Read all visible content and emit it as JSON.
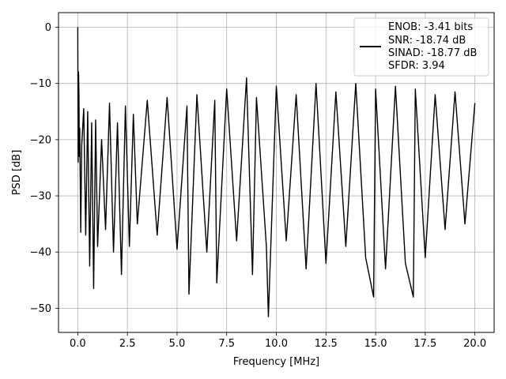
{
  "chart_data": {
    "type": "line",
    "xlabel": "Frequency [MHz]",
    "ylabel": "PSD [dB]",
    "xlim": [
      -0.97,
      20.97
    ],
    "ylim": [
      -54.3,
      2.6
    ],
    "xticks": [
      0.0,
      2.5,
      5.0,
      7.5,
      10.0,
      12.5,
      15.0,
      17.5,
      20.0
    ],
    "xtick_labels": [
      "0.0",
      "2.5",
      "5.0",
      "7.5",
      "10.0",
      "12.5",
      "15.0",
      "17.5",
      "20.0"
    ],
    "yticks": [
      0,
      -10,
      -20,
      -30,
      -40,
      -50
    ],
    "ytick_labels": [
      "0",
      "−10",
      "−20",
      "−30",
      "−40",
      "−50"
    ],
    "grid": true,
    "legend_position": "top-right",
    "legend_lines": [
      "ENOB: -3.41 bits",
      "SNR: -18.74 dB",
      "SINAD: -18.77 dB",
      "SFDR: 3.94"
    ],
    "series_color": "#000000",
    "series": [
      {
        "x": [
          0.0,
          0.02,
          0.04,
          0.06,
          0.08,
          0.1,
          0.15,
          0.2,
          0.3,
          0.4,
          0.5,
          0.6,
          0.7,
          0.8,
          0.9,
          1.0,
          1.2,
          1.4,
          1.6,
          1.8,
          2.0,
          2.2,
          2.4,
          2.6,
          2.8,
          3.0,
          3.5,
          4.0,
          4.5,
          5.0,
          5.5,
          5.6,
          6.0,
          6.5,
          6.9,
          7.0,
          7.5,
          8.0,
          8.5,
          8.8,
          9.0,
          9.5,
          9.6,
          10.0,
          10.5,
          11.0,
          11.5,
          12.0,
          12.5,
          13.0,
          13.5,
          14.0,
          14.5,
          14.9,
          15.0,
          15.5,
          16.0,
          16.5,
          16.9,
          17.0,
          17.5,
          18.0,
          18.5,
          19.0,
          19.5,
          20.0
        ],
        "y": [
          0.0,
          -24.0,
          -8.0,
          -12.0,
          -23.0,
          -18.0,
          -36.5,
          -21.0,
          -14.5,
          -37.0,
          -15.0,
          -42.5,
          -17.0,
          -46.5,
          -16.5,
          -39.0,
          -20.0,
          -36.0,
          -13.5,
          -40.0,
          -17.0,
          -44.0,
          -14.0,
          -39.0,
          -15.5,
          -35.0,
          -13.0,
          -37.0,
          -12.5,
          -39.5,
          -14.0,
          -47.5,
          -12.0,
          -40.0,
          -13.0,
          -45.5,
          -11.0,
          -38.0,
          -9.0,
          -44.0,
          -12.5,
          -39.0,
          -51.5,
          -10.5,
          -38.0,
          -12.0,
          -43.0,
          -10.0,
          -42.0,
          -11.5,
          -39.0,
          -10.0,
          -41.0,
          -48.0,
          -11.0,
          -43.0,
          -10.5,
          -42.0,
          -48.0,
          -11.0,
          -41.0,
          -12.0,
          -36.0,
          -11.5,
          -35.0,
          -13.5
        ]
      }
    ]
  }
}
